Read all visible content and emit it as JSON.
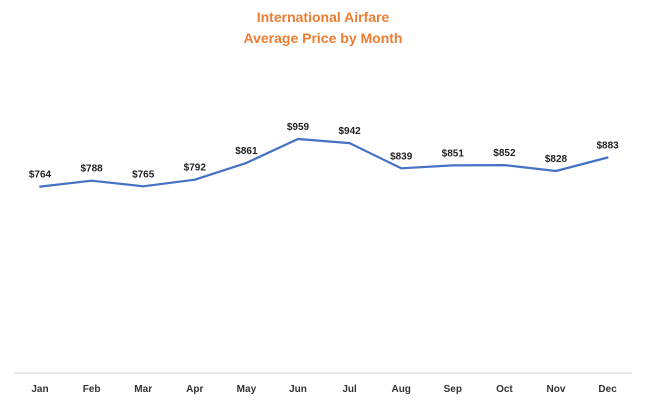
{
  "chart_data": {
    "type": "line",
    "title": "International Airfare",
    "subtitle": "Average Price by Month",
    "categories": [
      "Jan",
      "Feb",
      "Mar",
      "Apr",
      "May",
      "Jun",
      "Jul",
      "Aug",
      "Sep",
      "Oct",
      "Nov",
      "Dec"
    ],
    "series": [
      {
        "name": "Average Price",
        "values": [
          764,
          788,
          765,
          792,
          861,
          959,
          942,
          839,
          851,
          852,
          828,
          883
        ],
        "labels": [
          "$764",
          "$788",
          "$765",
          "$792",
          "$861",
          "$959",
          "$942",
          "$839",
          "$851",
          "$852",
          "$828",
          "$883"
        ]
      }
    ],
    "xlabel": "",
    "ylabel": "",
    "ylim": [
      0,
      1100
    ],
    "grid": false,
    "legend": "none",
    "y_axis_visible": false
  },
  "colors": {
    "title": "#ED7D31",
    "line": "#4472C4",
    "axis": "#D0D0D0",
    "label": "#222222"
  }
}
